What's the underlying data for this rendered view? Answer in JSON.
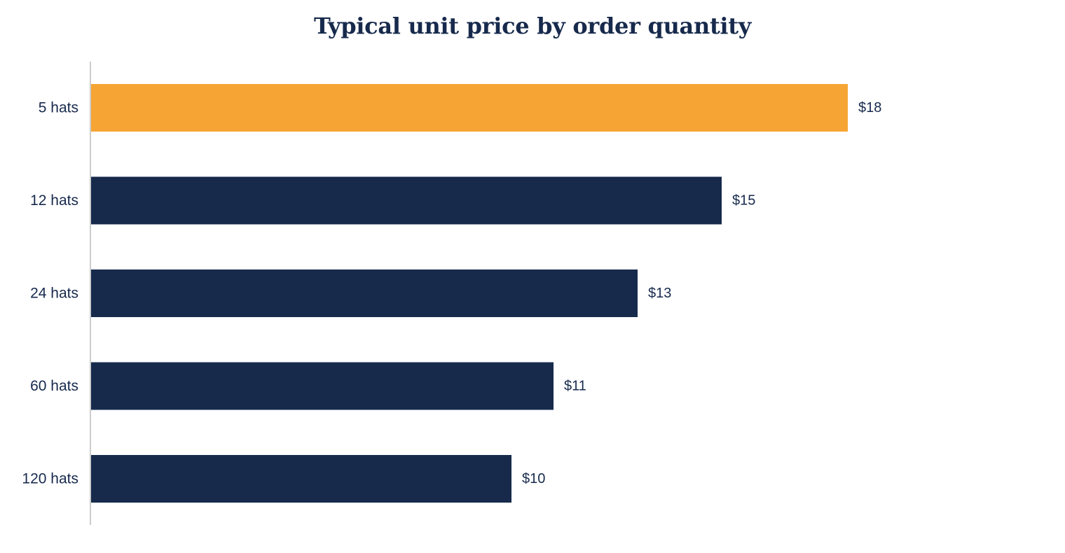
{
  "chart_data": {
    "type": "bar",
    "orientation": "horizontal",
    "title": "Typical unit price by order quantity",
    "xlabel": "",
    "ylabel": "",
    "categories": [
      "5 hats",
      "12 hats",
      "24 hats",
      "60 hats",
      "120 hats"
    ],
    "values": [
      18,
      15,
      13,
      11,
      10
    ],
    "value_labels": [
      "$18",
      "$15",
      "$13",
      "$11",
      "$10"
    ],
    "xlim": [
      0,
      25
    ],
    "grid": false,
    "legend": "none",
    "colors": {
      "highlight": "#f6a535",
      "default": "#172a4c",
      "axis": "#cccccc",
      "text": "#172a4c"
    },
    "highlight_index": 0
  }
}
